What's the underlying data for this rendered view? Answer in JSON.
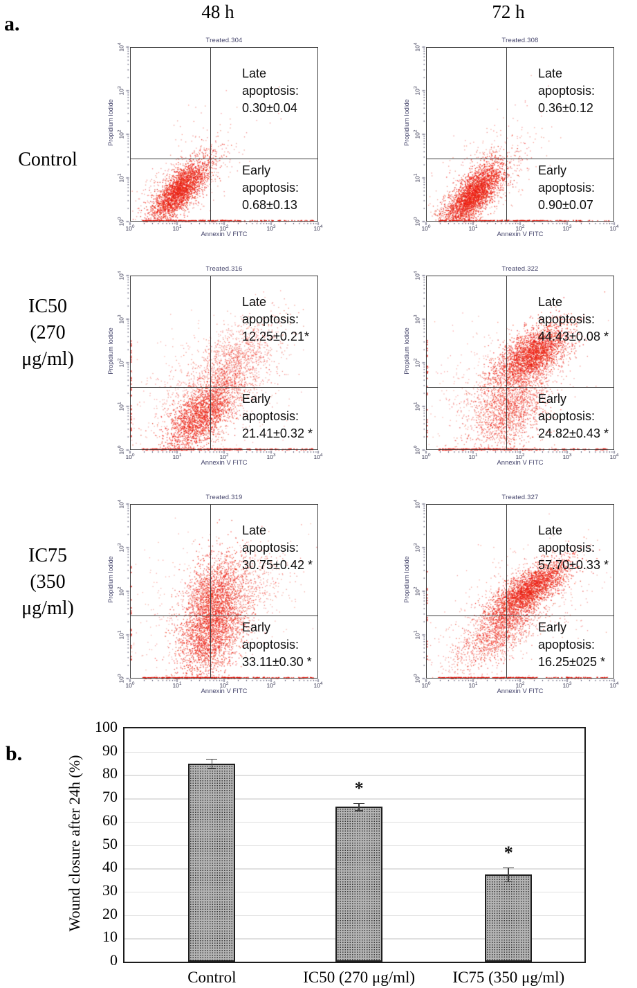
{
  "page": {
    "panel_a_label": "a.",
    "panel_b_label": "b.",
    "col_headers": [
      "48 h",
      "72 h"
    ],
    "row_labels": [
      "Control",
      "IC50\n(270\nμg/ml)",
      "IC75\n(350\nμg/ml)"
    ]
  },
  "flow_axis": {
    "x_label": "Annexin V FITC",
    "y_label": "Propidium Iodide",
    "tick_base": "10",
    "tick_exponents": [
      0,
      1,
      2,
      3,
      4
    ]
  },
  "colors": {
    "scatter_red": "#e11a12",
    "axis_text": "#44446b",
    "quadrant_line": "#3c3c3c",
    "bar_fill": "#b4b4b4",
    "bar_border": "#1e1e1e",
    "gridline": "#e0e0e0"
  },
  "chart_data": [
    {
      "type": "scatter",
      "title": "Treated.304",
      "condition": "Control",
      "timepoint": "48 h",
      "x_range_log10": [
        0,
        4
      ],
      "y_range_log10": [
        0,
        4
      ],
      "quadrant_x_log": 1.7,
      "quadrant_y_log": 1.45,
      "annotations": {
        "late_label": "Late apoptosis:",
        "late_value": "0.30±0.04",
        "early_label": "Early apoptosis:",
        "early_value": "0.68±0.13"
      },
      "clusters": [
        [
          1.05,
          0.72,
          0.3,
          0.35,
          0.75,
          2400,
          0.9
        ],
        [
          1.05,
          0.72,
          0.55,
          0.6,
          0.7,
          500,
          0.5
        ],
        [
          1.6,
          1.9,
          0.5,
          0.5,
          0.2,
          40,
          0.5
        ],
        [
          2.6,
          2.9,
          0.5,
          0.4,
          0.0,
          8,
          0.5
        ]
      ],
      "baseline_n": 260,
      "left_n": 0,
      "seed": 7
    },
    {
      "type": "scatter",
      "title": "Treated.308",
      "condition": "Control",
      "timepoint": "72 h",
      "x_range_log10": [
        0,
        4
      ],
      "y_range_log10": [
        0,
        4
      ],
      "quadrant_x_log": 1.7,
      "quadrant_y_log": 1.45,
      "annotations": {
        "late_label": "Late apoptosis:",
        "late_value": "0.36±0.12",
        "early_label": "Early apoptosis:",
        "early_value": "0.90±0.07"
      },
      "clusters": [
        [
          1.0,
          0.62,
          0.32,
          0.38,
          0.75,
          2800,
          0.9
        ],
        [
          1.0,
          0.62,
          0.6,
          0.65,
          0.7,
          550,
          0.5
        ],
        [
          1.3,
          1.6,
          0.5,
          0.45,
          0.3,
          60,
          0.5
        ],
        [
          2.3,
          2.7,
          0.35,
          0.4,
          0.3,
          12,
          0.5
        ]
      ],
      "baseline_n": 240,
      "left_n": 0,
      "seed": 13
    },
    {
      "type": "scatter",
      "title": "Treated.316",
      "condition": "IC50 (270 μg/ml)",
      "timepoint": "48 h",
      "x_range_log10": [
        0,
        4
      ],
      "y_range_log10": [
        0,
        4
      ],
      "quadrant_x_log": 1.7,
      "quadrant_y_log": 1.45,
      "annotations": {
        "late_label": "Late apoptosis:",
        "late_value": "12.25±0.21*",
        "early_label": "Early apoptosis:",
        "early_value": "21.41±0.32 *"
      },
      "clusters": [
        [
          1.5,
          0.8,
          0.38,
          0.42,
          0.6,
          2000,
          0.85
        ],
        [
          1.9,
          1.6,
          0.55,
          0.6,
          0.55,
          900,
          0.55
        ],
        [
          2.3,
          2.1,
          0.45,
          0.5,
          0.5,
          700,
          0.5
        ],
        [
          1.5,
          1.2,
          0.9,
          0.8,
          0.3,
          500,
          0.4
        ]
      ],
      "baseline_n": 300,
      "left_n": 35,
      "seed": 21
    },
    {
      "type": "scatter",
      "title": "Treated.322",
      "condition": "IC50 (270 μg/ml)",
      "timepoint": "72 h",
      "x_range_log10": [
        0,
        4
      ],
      "y_range_log10": [
        0,
        4
      ],
      "quadrant_x_log": 1.7,
      "quadrant_y_log": 1.45,
      "annotations": {
        "late_label": "Late apoptosis:",
        "late_value": "44.43±0.08 *",
        "early_label": "Early apoptosis:",
        "early_value": "24.82±0.43 *"
      },
      "clusters": [
        [
          2.25,
          2.2,
          0.38,
          0.35,
          0.6,
          2400,
          0.85
        ],
        [
          2.0,
          1.6,
          0.5,
          0.55,
          0.5,
          900,
          0.55
        ],
        [
          1.75,
          0.9,
          0.4,
          0.5,
          0.25,
          1300,
          0.7
        ],
        [
          1.2,
          1.2,
          0.8,
          0.8,
          0.2,
          350,
          0.4
        ]
      ],
      "baseline_n": 260,
      "left_n": 25,
      "seed": 29
    },
    {
      "type": "scatter",
      "title": "Treated.319",
      "condition": "IC75 (350 μg/ml)",
      "timepoint": "48 h",
      "x_range_log10": [
        0,
        4
      ],
      "y_range_log10": [
        0,
        4
      ],
      "quadrant_x_log": 1.7,
      "quadrant_y_log": 1.45,
      "annotations": {
        "late_label": "Late apoptosis:",
        "late_value": "30.75±0.42 *",
        "early_label": "Early apoptosis:",
        "early_value": "33.11±0.30 *"
      },
      "clusters": [
        [
          1.75,
          1.8,
          0.33,
          0.55,
          0.35,
          1800,
          0.8
        ],
        [
          1.7,
          0.9,
          0.35,
          0.5,
          0.4,
          1600,
          0.8
        ],
        [
          2.3,
          2.0,
          0.5,
          0.5,
          0.4,
          700,
          0.5
        ],
        [
          1.5,
          1.5,
          0.9,
          0.9,
          0.2,
          400,
          0.4
        ]
      ],
      "baseline_n": 300,
      "left_n": 20,
      "seed": 41
    },
    {
      "type": "scatter",
      "title": "Treated.327",
      "condition": "IC75 (350 μg/ml)",
      "timepoint": "72 h",
      "x_range_log10": [
        0,
        4
      ],
      "y_range_log10": [
        0,
        4
      ],
      "quadrant_x_log": 1.7,
      "quadrant_y_log": 1.45,
      "annotations": {
        "late_label": "Late apoptosis:",
        "late_value": "57.70±0.33 *",
        "early_label": "Early apoptosis:",
        "early_value": "16.25±025 *"
      },
      "clusters": [
        [
          2.2,
          2.05,
          0.42,
          0.33,
          0.75,
          2600,
          0.85
        ],
        [
          1.6,
          1.15,
          0.4,
          0.4,
          0.65,
          1200,
          0.7
        ],
        [
          2.0,
          1.7,
          0.8,
          0.7,
          0.5,
          500,
          0.45
        ],
        [
          1.0,
          0.6,
          0.5,
          0.45,
          0.4,
          250,
          0.5
        ]
      ],
      "baseline_n": 260,
      "left_n": 15,
      "seed": 53
    },
    {
      "type": "bar",
      "categories": [
        "Control",
        "IC50 (270 μg/ml)",
        "IC75 (350 μg/ml)"
      ],
      "values": [
        85,
        66.5,
        37.5
      ],
      "errors": [
        2,
        1.5,
        3
      ],
      "significance": [
        "",
        "*",
        "*"
      ],
      "ylabel": "Wound closure after 24h  (%)",
      "ylim": [
        0,
        100
      ],
      "ytick_step": 10,
      "grid": true,
      "legend": "none"
    }
  ]
}
